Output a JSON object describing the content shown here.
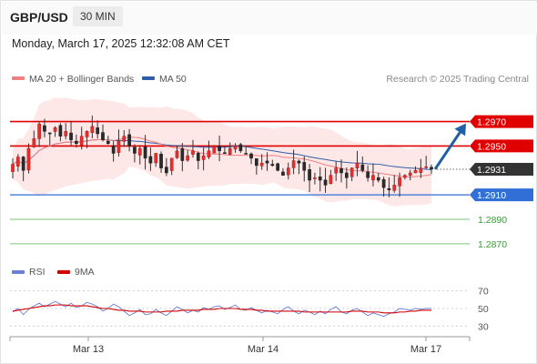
{
  "header": {
    "pair": "GBP/USD",
    "timeframe": "30 MIN",
    "datetime": "Monday, March 17, 2025 12:32:08 AM CET"
  },
  "legend": {
    "ma20_label": "MA 20 + Bollinger Bands",
    "ma50_label": "MA 50",
    "credit": "Research © 2025 Trading Central",
    "rsi_label": "RSI",
    "ma9_label": "9MA"
  },
  "colors": {
    "ma20": "#f08080",
    "ma50": "#2f5ea8",
    "resistance": "#e00000",
    "support": "#2f6fd6",
    "target": "#3a9a3a",
    "current": "#333333",
    "arrow": "#1f5fa8",
    "rsi": "#6a7fd6",
    "ma9": "#d40000"
  },
  "chart_data": {
    "type": "candlestick",
    "pair": "GBP/USD",
    "ylim": [
      1.2855,
      1.2995
    ],
    "x_ticks": [
      "Mar 13",
      "Mar 14",
      "Mar 17"
    ],
    "levels": [
      {
        "label": "1.2970",
        "value": 1.297,
        "kind": "resistance"
      },
      {
        "label": "1.2950",
        "value": 1.295,
        "kind": "resistance"
      },
      {
        "label": "1.2931",
        "value": 1.2931,
        "kind": "current"
      },
      {
        "label": "1.2910",
        "value": 1.291,
        "kind": "support"
      },
      {
        "label": "1.2890",
        "value": 1.289,
        "kind": "target"
      },
      {
        "label": "1.2870",
        "value": 1.287,
        "kind": "target"
      }
    ],
    "projection": {
      "from": 1.2931,
      "to": 1.297
    },
    "candles_close": [
      1.2935,
      1.2941,
      1.293,
      1.2948,
      1.2956,
      1.2968,
      1.2962,
      1.296,
      1.2965,
      1.2958,
      1.2962,
      1.2955,
      1.2952,
      1.2958,
      1.2962,
      1.2966,
      1.296,
      1.2955,
      1.2952,
      1.2944,
      1.2954,
      1.2958,
      1.295,
      1.2944,
      1.2948,
      1.294,
      1.2936,
      1.2944,
      1.2932,
      1.2928,
      1.294,
      1.2946,
      1.2938,
      1.2942,
      1.2946,
      1.2938,
      1.2942,
      1.2946,
      1.295,
      1.2946,
      1.2944,
      1.2948,
      1.295,
      1.2946,
      1.2944,
      1.294,
      1.2934,
      1.2936,
      1.2936,
      1.2934,
      1.293,
      1.2926,
      1.2932,
      1.2938,
      1.2936,
      1.293,
      1.2922,
      1.2924,
      1.2922,
      1.2918,
      1.2926,
      1.2932,
      1.2928,
      1.2924,
      1.2932,
      1.2936,
      1.293,
      1.2924,
      1.2926,
      1.2922,
      1.2916,
      1.2914,
      1.2918,
      1.2924,
      1.2926,
      1.2928,
      1.293,
      1.2932,
      1.2933,
      1.2931
    ],
    "rsi": {
      "ylim": [
        20,
        80
      ],
      "ticks": [
        {
          "label": "70",
          "value": 70
        },
        {
          "label": "50",
          "value": 50
        },
        {
          "label": "30",
          "value": 30
        }
      ],
      "values": [
        46,
        50,
        43,
        49,
        53,
        56,
        52,
        55,
        58,
        55,
        52,
        56,
        51,
        53,
        57,
        55,
        52,
        47,
        50,
        55,
        52,
        47,
        42,
        45,
        49,
        43,
        44,
        49,
        45,
        42,
        47,
        52,
        49,
        45,
        48,
        46,
        51,
        49,
        52,
        53,
        49,
        51,
        54,
        49,
        48,
        51,
        48,
        45,
        48,
        46,
        44,
        49,
        52,
        47,
        44,
        48,
        46,
        43,
        47,
        44,
        49,
        52,
        46,
        44,
        48,
        50,
        46,
        42,
        45,
        43,
        41,
        44,
        46,
        50,
        49,
        48,
        50,
        49,
        50,
        50
      ],
      "ma9": [
        47,
        48,
        49,
        50,
        51,
        52,
        53,
        53,
        54,
        54,
        54,
        53,
        53,
        53,
        53,
        52,
        51,
        50,
        50,
        49,
        48,
        48,
        47,
        47,
        47,
        46,
        46,
        46,
        46,
        47,
        47,
        47,
        48,
        48,
        48,
        48,
        49,
        49,
        49,
        50,
        50,
        50,
        50,
        49,
        49,
        49,
        48,
        48,
        47,
        47,
        47,
        47,
        47,
        47,
        47,
        46,
        46,
        46,
        46,
        46,
        46,
        46,
        46,
        46,
        47,
        47,
        47,
        46,
        46,
        46,
        45,
        45,
        45,
        46,
        46,
        47,
        47,
        48,
        48,
        48
      ]
    }
  }
}
